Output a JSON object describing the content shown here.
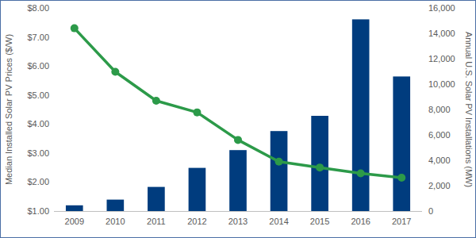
{
  "chart_data": {
    "type": "bar",
    "y_label": "Median Installed Solar PV Prices ($/W)",
    "y2_label": "Annual U.S. Solar PV Installations (MW)",
    "categories": [
      "2009",
      "2010",
      "2011",
      "2012",
      "2013",
      "2014",
      "2015",
      "2016",
      "2017"
    ],
    "series": [
      {
        "type": "bar",
        "axis": "y2",
        "color": "#003c7e",
        "values": [
          450,
          900,
          1900,
          3400,
          4800,
          6300,
          7500,
          15100,
          10600
        ]
      },
      {
        "type": "line",
        "color": "#2c9a49",
        "marker": "circle",
        "line_style": "solid",
        "values": [
          7.3,
          5.8,
          4.8,
          4.4,
          3.45,
          2.7,
          2.5,
          2.3,
          2.15
        ]
      }
    ],
    "ylim": [
      1,
      8
    ],
    "yticks": [
      {
        "value": 1,
        "label": "$1.00"
      },
      {
        "value": 2,
        "label": "$2.00"
      },
      {
        "value": 3,
        "label": "$3.00"
      },
      {
        "value": 4,
        "label": "$4.00"
      },
      {
        "value": 5,
        "label": "$5.00"
      },
      {
        "value": 6,
        "label": "$6.00"
      },
      {
        "value": 7,
        "label": "$7.00"
      },
      {
        "value": 8,
        "label": "$8.00"
      }
    ],
    "y2lim": [
      0,
      16000
    ],
    "y2ticks": [
      0,
      {
        "value": 2000,
        "label": "2,000"
      },
      {
        "value": 4000,
        "label": "4,000"
      },
      {
        "value": 6000,
        "label": "6,000"
      },
      {
        "value": 8000,
        "label": "8,000"
      },
      {
        "value": 10000,
        "label": "10,000"
      },
      {
        "value": 12000,
        "label": "12,000"
      },
      {
        "value": 14000,
        "label": "14,000"
      },
      {
        "value": 16000,
        "label": "16,000"
      }
    ],
    "grid": false
  }
}
